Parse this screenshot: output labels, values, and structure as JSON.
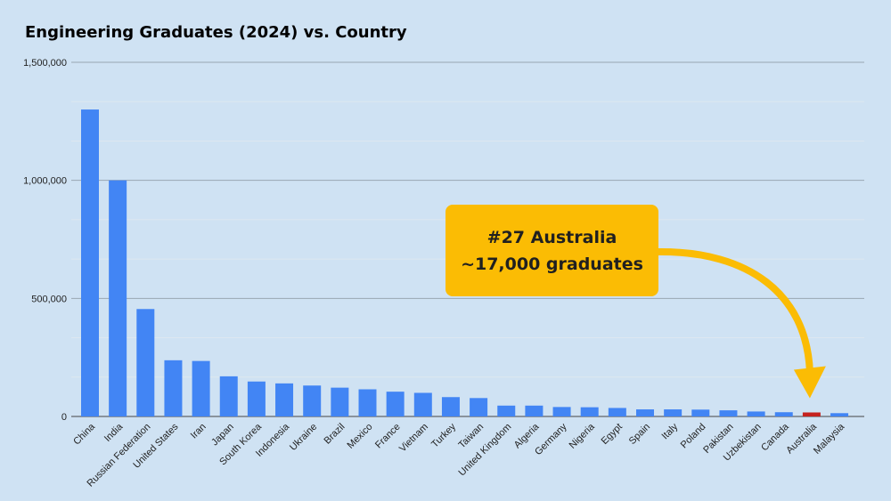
{
  "chart_data": {
    "type": "bar",
    "title": "Engineering Graduates (2024) vs. Country",
    "xlabel": "",
    "ylabel": "",
    "ylim": [
      0,
      1500000
    ],
    "yticks": [
      0,
      500000,
      1000000,
      1500000
    ],
    "ytick_labels": [
      "0",
      "500,000",
      "1,000,000",
      "1,500,000"
    ],
    "grid": true,
    "legend": "none",
    "categories": [
      "China",
      "India",
      "Russian Federation",
      "United States",
      "Iran",
      "Japan",
      "South Korea",
      "Indonesia",
      "Ukraine",
      "Brazil",
      "Mexico",
      "France",
      "Vietnam",
      "Turkey",
      "Taiwan",
      "United Kingdom",
      "Algeria",
      "Germany",
      "Nigeria",
      "Egypt",
      "Spain",
      "Italy",
      "Poland",
      "Pakistan",
      "Uzbekistan",
      "Canada",
      "Australia",
      "Malaysia"
    ],
    "values": [
      1300000,
      1000000,
      455000,
      238000,
      235000,
      170000,
      148000,
      140000,
      131000,
      122000,
      115000,
      105000,
      100000,
      82000,
      78000,
      46000,
      46000,
      40000,
      39000,
      36000,
      30000,
      30000,
      29000,
      26000,
      21000,
      18000,
      17000,
      14000
    ],
    "bar_color": "#4285f4",
    "highlight": {
      "category": "Australia",
      "color": "#c5221f"
    },
    "annotation": {
      "text": "#27 Australia ~17,000 graduates",
      "color": "#fbbc04",
      "points_to": "Australia"
    }
  }
}
